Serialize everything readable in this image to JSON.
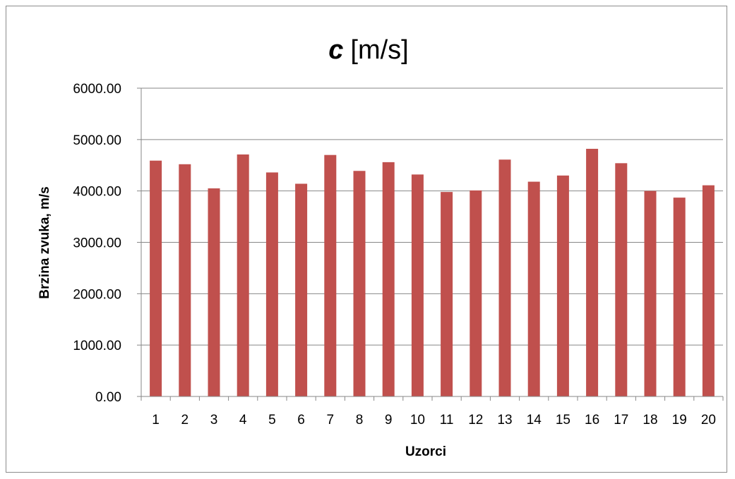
{
  "chart_data": {
    "type": "bar",
    "title_symbol": "c",
    "title_unit": "[m/s]",
    "xlabel": "Uzorci",
    "ylabel": "Brzina zvuka, m/s",
    "categories": [
      "1",
      "2",
      "3",
      "4",
      "5",
      "6",
      "7",
      "8",
      "9",
      "10",
      "11",
      "12",
      "13",
      "14",
      "15",
      "16",
      "17",
      "18",
      "19",
      "20"
    ],
    "values": [
      4590,
      4520,
      4050,
      4710,
      4360,
      4140,
      4700,
      4390,
      4560,
      4320,
      3980,
      4010,
      4610,
      4180,
      4300,
      4820,
      4540,
      4000,
      3870,
      4110
    ],
    "ylim": [
      0,
      6000
    ],
    "yticks": [
      "0.00",
      "1000.00",
      "2000.00",
      "3000.00",
      "4000.00",
      "5000.00",
      "6000.00"
    ],
    "ytick_values": [
      0,
      1000,
      2000,
      3000,
      4000,
      5000,
      6000
    ],
    "grid": true,
    "bar_color": "#c0504d",
    "grid_color": "#878787"
  }
}
